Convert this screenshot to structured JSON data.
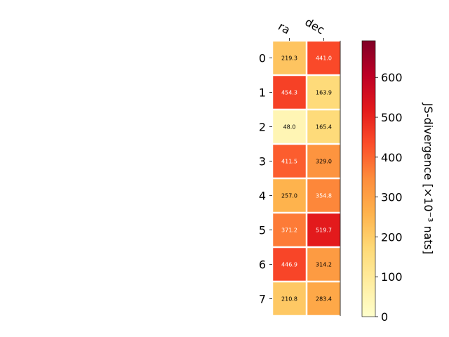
{
  "chart_data": {
    "type": "heatmap",
    "columns": [
      "ra",
      "dec"
    ],
    "rows": [
      "0",
      "1",
      "2",
      "3",
      "4",
      "5",
      "6",
      "7"
    ],
    "values": [
      [
        219.3,
        441.0
      ],
      [
        454.3,
        163.9
      ],
      [
        48.0,
        165.4
      ],
      [
        411.5,
        329.0
      ],
      [
        257.0,
        354.8
      ],
      [
        371.2,
        519.7
      ],
      [
        446.9,
        314.2
      ],
      [
        210.8,
        283.4
      ]
    ],
    "value_labels": [
      [
        "219.3",
        "441.0"
      ],
      [
        "454.3",
        "163.9"
      ],
      [
        "48.0",
        "165.4"
      ],
      [
        "411.5",
        "329.0"
      ],
      [
        "257.0",
        "354.8"
      ],
      [
        "371.2",
        "519.7"
      ],
      [
        "446.9",
        "314.2"
      ],
      [
        "210.8",
        "283.4"
      ]
    ],
    "colorbar": {
      "label": "JS-divergence [×10⁻³ nats]",
      "range": [
        0,
        692
      ],
      "ticks": [
        0,
        100,
        200,
        300,
        400,
        500,
        600
      ],
      "colormap": "YlOrRd"
    },
    "colormap_stops": [
      "#ffffcc",
      "#ffeda0",
      "#fed976",
      "#feb24c",
      "#fd8d3c",
      "#fc4e2a",
      "#e31a1c",
      "#bd0026",
      "#800026"
    ]
  }
}
